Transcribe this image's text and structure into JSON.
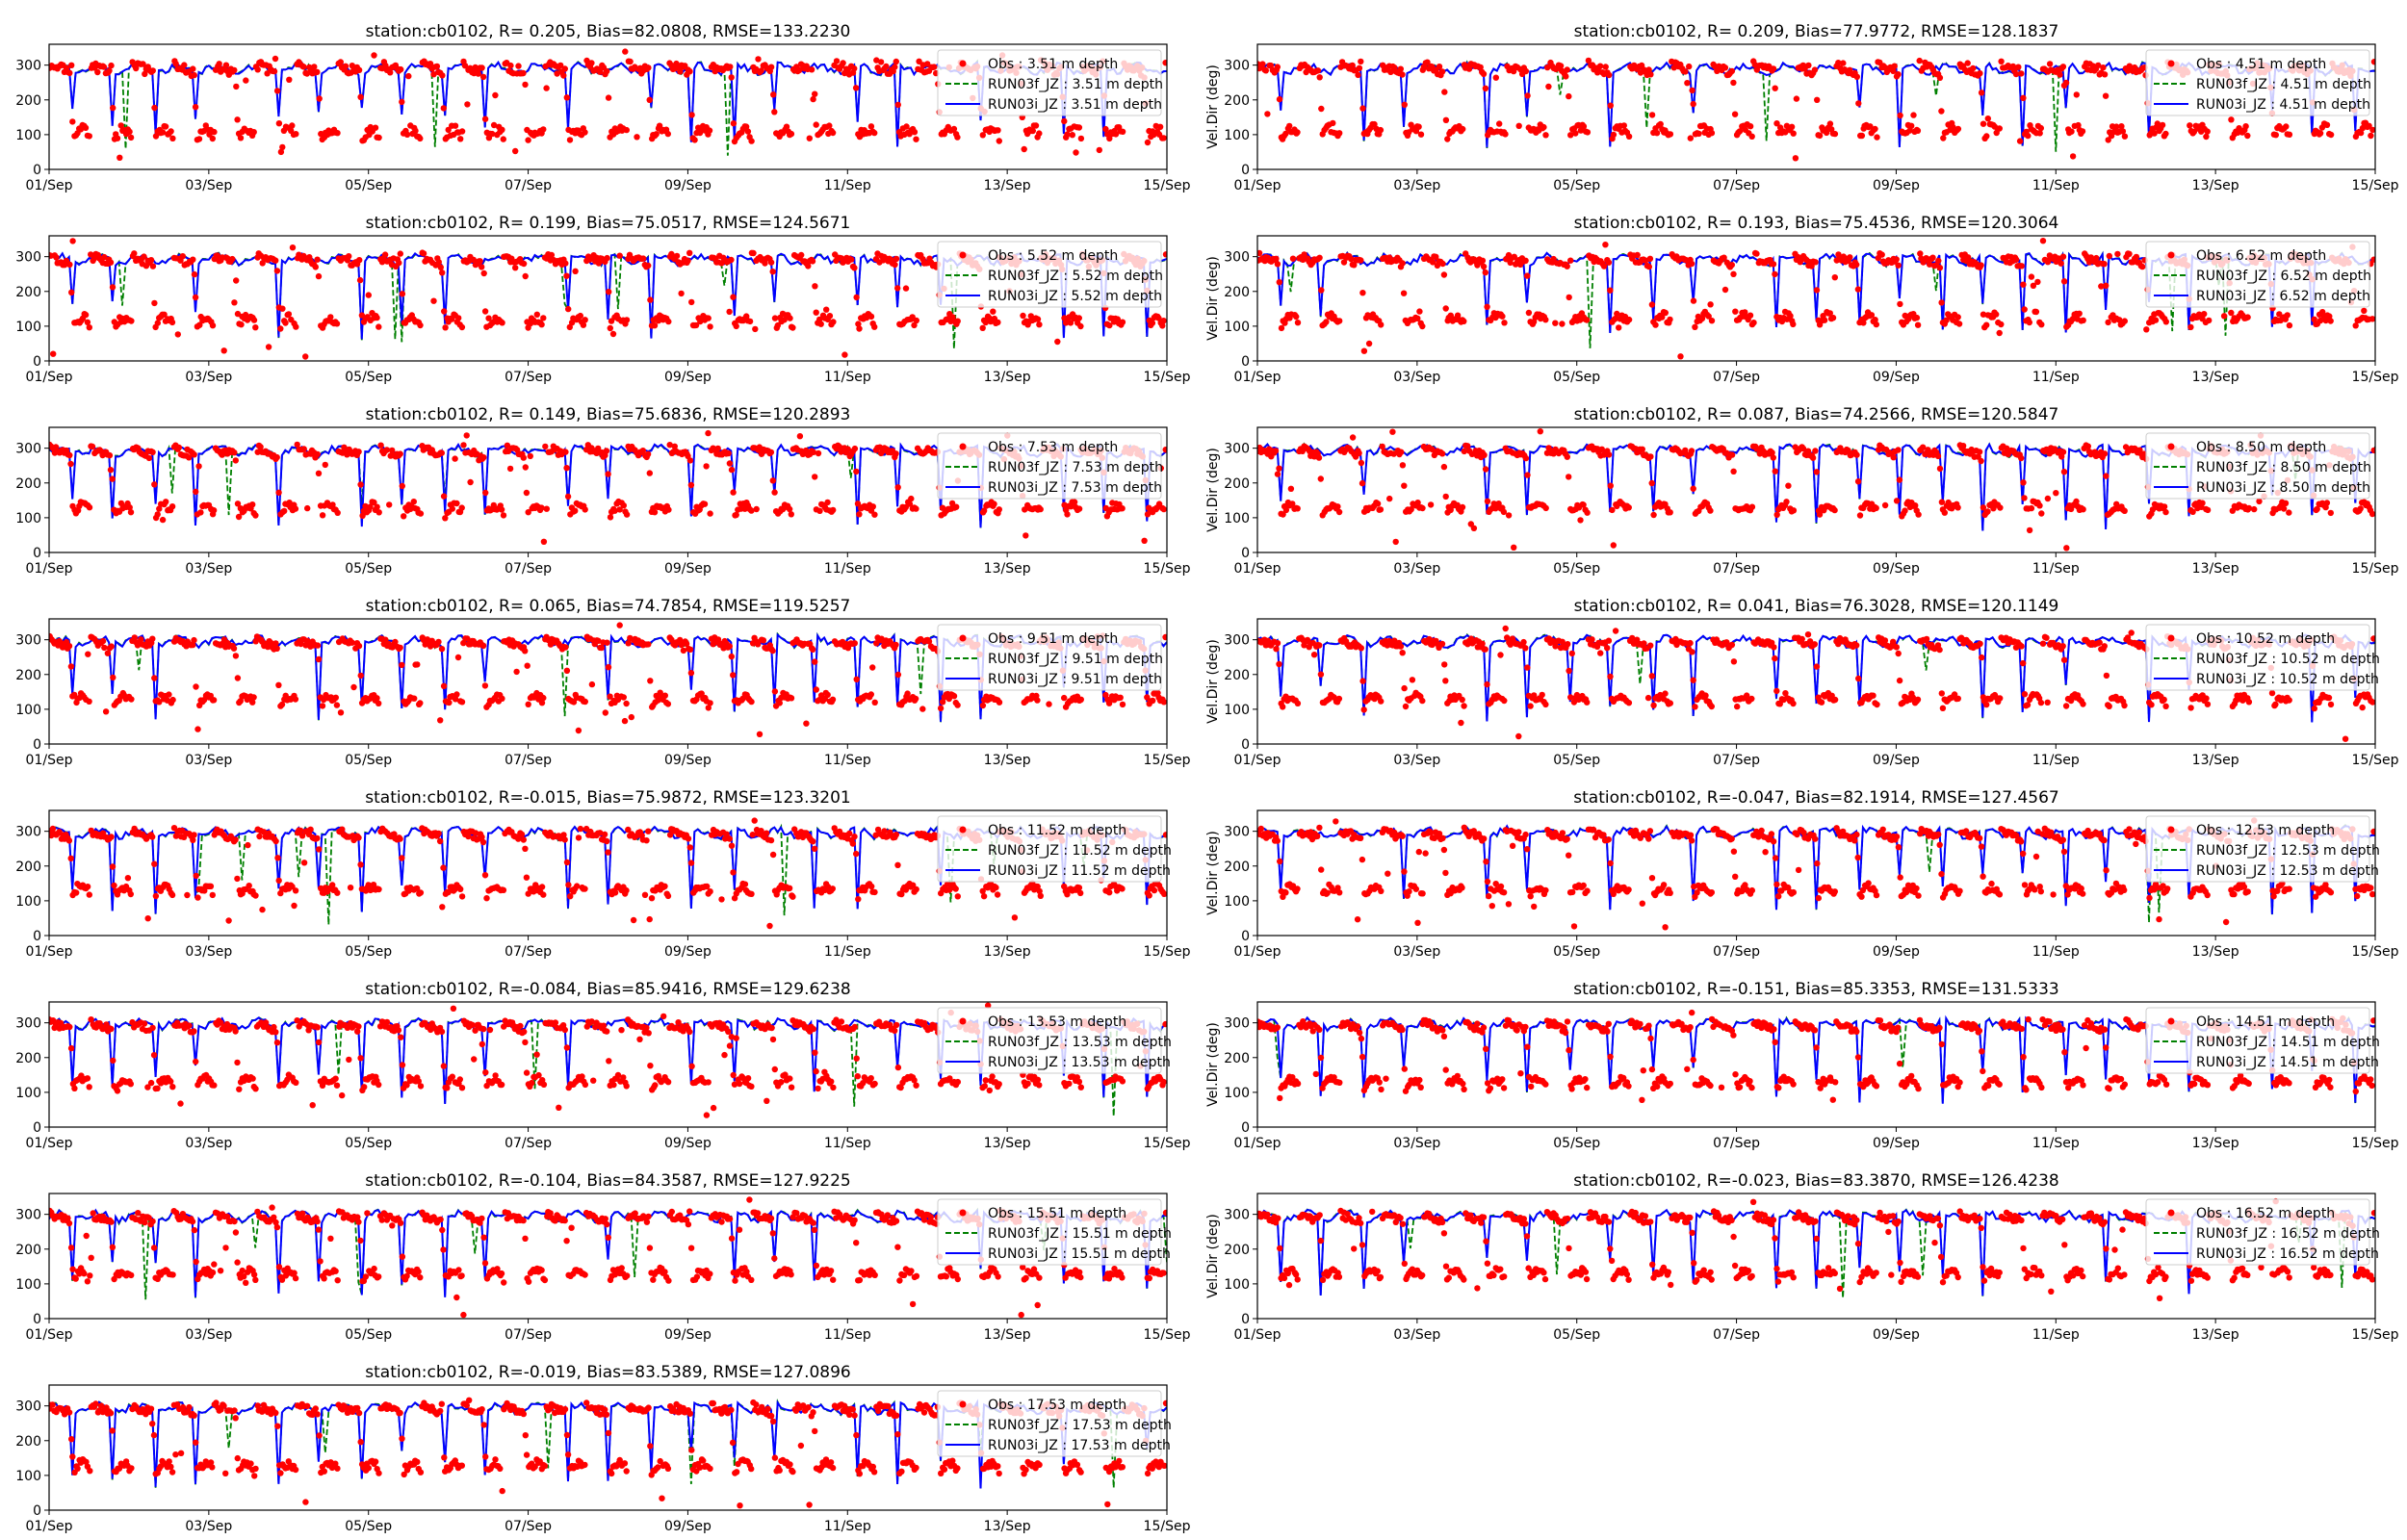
{
  "figure": {
    "colors": {
      "obs": "#ff0000",
      "run03f": "#008000",
      "run03i": "#0000ff"
    },
    "xlim_days": [
      0,
      14
    ],
    "xtick_labels": [
      "01/Sep",
      "03/Sep",
      "05/Sep",
      "07/Sep",
      "09/Sep",
      "11/Sep",
      "13/Sep",
      "15/Sep"
    ]
  },
  "chart_data": [
    {
      "type": "line",
      "title": "station:cb0102, R= 0.205, Bias=82.0808, RMSE=133.2230",
      "ylabel": "",
      "ylim": [
        0,
        360
      ],
      "yticks": [
        0,
        100,
        200,
        300
      ],
      "legend": [
        "Obs : 3.51 m depth",
        "RUN03f_JZ : 3.51 m depth",
        "RUN03i_JZ : 3.51 m depth"
      ],
      "legend_position": "top-right",
      "obs": {
        "day_max": 85,
        "night_min": 90,
        "noise": 30
      },
      "model_base": 290
    },
    {
      "type": "line",
      "title": "station:cb0102, R= 0.209, Bias=77.9772, RMSE=128.1837",
      "ylabel": "Vel.Dir (deg)",
      "ylim": [
        0,
        360
      ],
      "yticks": [
        0,
        100,
        200,
        300
      ],
      "legend": [
        "Obs : 4.51 m depth",
        "RUN03f_JZ : 4.51 m depth",
        "RUN03i_JZ : 4.51 m depth"
      ],
      "legend_position": "top-right",
      "obs": {
        "day_max": 85,
        "night_min": 95,
        "noise": 28
      },
      "model_base": 290
    },
    {
      "type": "line",
      "title": "station:cb0102, R= 0.199, Bias=75.0517, RMSE=124.5671",
      "ylabel": "",
      "ylim": [
        0,
        360
      ],
      "yticks": [
        0,
        100,
        200,
        300
      ],
      "legend": [
        "Obs : 5.52 m depth",
        "RUN03f_JZ : 5.52 m depth",
        "RUN03i_JZ : 5.52 m depth"
      ],
      "legend_position": "top-right",
      "obs": {
        "day_max": 85,
        "night_min": 100,
        "noise": 26
      },
      "model_base": 292
    },
    {
      "type": "line",
      "title": "station:cb0102, R= 0.193, Bias=75.4536, RMSE=120.3064",
      "ylabel": "Vel.Dir (deg)",
      "ylim": [
        0,
        360
      ],
      "yticks": [
        0,
        100,
        200,
        300
      ],
      "legend": [
        "Obs : 6.52 m depth",
        "RUN03f_JZ : 6.52 m depth",
        "RUN03i_JZ : 6.52 m depth"
      ],
      "legend_position": "top-right",
      "obs": {
        "day_max": 85,
        "night_min": 105,
        "noise": 25
      },
      "model_base": 292
    },
    {
      "type": "line",
      "title": "station:cb0102, R= 0.149, Bias=75.6836, RMSE=120.2893",
      "ylabel": "",
      "ylim": [
        0,
        360
      ],
      "yticks": [
        0,
        100,
        200,
        300
      ],
      "legend": [
        "Obs : 7.53 m depth",
        "RUN03f_JZ : 7.53 m depth",
        "RUN03i_JZ : 7.53 m depth"
      ],
      "legend_position": "top-right",
      "obs": {
        "day_max": 85,
        "night_min": 110,
        "noise": 24
      },
      "model_base": 293
    },
    {
      "type": "line",
      "title": "station:cb0102, R= 0.087, Bias=74.2566, RMSE=120.5847",
      "ylabel": "Vel.Dir (deg)",
      "ylim": [
        0,
        360
      ],
      "yticks": [
        0,
        100,
        200,
        300
      ],
      "legend": [
        "Obs : 8.50 m depth",
        "RUN03f_JZ : 8.50 m depth",
        "RUN03i_JZ : 8.50 m depth"
      ],
      "legend_position": "top-right",
      "obs": {
        "day_max": 85,
        "night_min": 112,
        "noise": 22
      },
      "model_base": 294
    },
    {
      "type": "line",
      "title": "station:cb0102, R= 0.065, Bias=74.7854, RMSE=119.5257",
      "ylabel": "",
      "ylim": [
        0,
        360
      ],
      "yticks": [
        0,
        100,
        200,
        300
      ],
      "legend": [
        "Obs : 9.51 m depth",
        "RUN03f_JZ : 9.51 m depth",
        "RUN03i_JZ : 9.51 m depth"
      ],
      "legend_position": "top-right",
      "obs": {
        "day_max": 85,
        "night_min": 112,
        "noise": 22
      },
      "model_base": 295
    },
    {
      "type": "line",
      "title": "station:cb0102, R= 0.041, Bias=76.3028, RMSE=120.1149",
      "ylabel": "Vel.Dir (deg)",
      "ylim": [
        0,
        360
      ],
      "yticks": [
        0,
        100,
        200,
        300
      ],
      "legend": [
        "Obs : 10.52 m depth",
        "RUN03f_JZ : 10.52 m depth",
        "RUN03i_JZ : 10.52 m depth"
      ],
      "legend_position": "top-right",
      "obs": {
        "day_max": 85,
        "night_min": 112,
        "noise": 22
      },
      "model_base": 295
    },
    {
      "type": "line",
      "title": "station:cb0102, R=-0.015, Bias=75.9872, RMSE=123.3201",
      "ylabel": "",
      "ylim": [
        0,
        360
      ],
      "yticks": [
        0,
        100,
        200,
        300
      ],
      "legend": [
        "Obs : 11.52 m depth",
        "RUN03f_JZ : 11.52 m depth",
        "RUN03i_JZ : 11.52 m depth"
      ],
      "legend_position": "top-right",
      "obs": {
        "day_max": 85,
        "night_min": 115,
        "noise": 22
      },
      "model_base": 295
    },
    {
      "type": "line",
      "title": "station:cb0102, R=-0.047, Bias=82.1914, RMSE=127.4567",
      "ylabel": "Vel.Dir (deg)",
      "ylim": [
        0,
        360
      ],
      "yticks": [
        0,
        100,
        200,
        300
      ],
      "legend": [
        "Obs : 12.53 m depth",
        "RUN03f_JZ : 12.53 m depth",
        "RUN03i_JZ : 12.53 m depth"
      ],
      "legend_position": "top-right",
      "obs": {
        "day_max": 85,
        "night_min": 115,
        "noise": 22
      },
      "model_base": 296
    },
    {
      "type": "line",
      "title": "station:cb0102, R=-0.084, Bias=85.9416, RMSE=129.6238",
      "ylabel": "",
      "ylim": [
        0,
        360
      ],
      "yticks": [
        0,
        100,
        200,
        300
      ],
      "legend": [
        "Obs : 13.53 m depth",
        "RUN03f_JZ : 13.53 m depth",
        "RUN03i_JZ : 13.53 m depth"
      ],
      "legend_position": "top-right",
      "obs": {
        "day_max": 85,
        "night_min": 115,
        "noise": 22
      },
      "model_base": 296
    },
    {
      "type": "line",
      "title": "station:cb0102, R=-0.151, Bias=85.3353, RMSE=131.5333",
      "ylabel": "Vel.Dir (deg)",
      "ylim": [
        0,
        360
      ],
      "yticks": [
        0,
        100,
        200,
        300
      ],
      "legend": [
        "Obs : 14.51 m depth",
        "RUN03f_JZ : 14.51 m depth",
        "RUN03i_JZ : 14.51 m depth"
      ],
      "legend_position": "top-right",
      "obs": {
        "day_max": 85,
        "night_min": 112,
        "noise": 22
      },
      "model_base": 296
    },
    {
      "type": "line",
      "title": "station:cb0102, R=-0.104, Bias=84.3587, RMSE=127.9225",
      "ylabel": "",
      "ylim": [
        0,
        360
      ],
      "yticks": [
        0,
        100,
        200,
        300
      ],
      "legend": [
        "Obs : 15.51 m depth",
        "RUN03f_JZ : 15.51 m depth",
        "RUN03i_JZ : 15.51 m depth"
      ],
      "legend_position": "top-right",
      "obs": {
        "day_max": 85,
        "night_min": 112,
        "noise": 22
      },
      "model_base": 294
    },
    {
      "type": "line",
      "title": "station:cb0102, R=-0.023, Bias=83.3870, RMSE=126.4238",
      "ylabel": "Vel.Dir (deg)",
      "ylim": [
        0,
        360
      ],
      "yticks": [
        0,
        100,
        200,
        300
      ],
      "legend": [
        "Obs : 16.52 m depth",
        "RUN03f_JZ : 16.52 m depth",
        "RUN03i_JZ : 16.52 m depth"
      ],
      "legend_position": "top-right",
      "obs": {
        "day_max": 85,
        "night_min": 112,
        "noise": 22
      },
      "model_base": 294
    },
    {
      "type": "line",
      "title": "station:cb0102, R=-0.019, Bias=83.5389, RMSE=127.0896",
      "ylabel": "",
      "ylim": [
        0,
        360
      ],
      "yticks": [
        0,
        100,
        200,
        300
      ],
      "legend": [
        "Obs : 17.53 m depth",
        "RUN03f_JZ : 17.53 m depth",
        "RUN03i_JZ : 17.53 m depth"
      ],
      "legend_position": "top-right",
      "obs": {
        "day_max": 85,
        "night_min": 110,
        "noise": 24
      },
      "model_base": 293
    }
  ]
}
